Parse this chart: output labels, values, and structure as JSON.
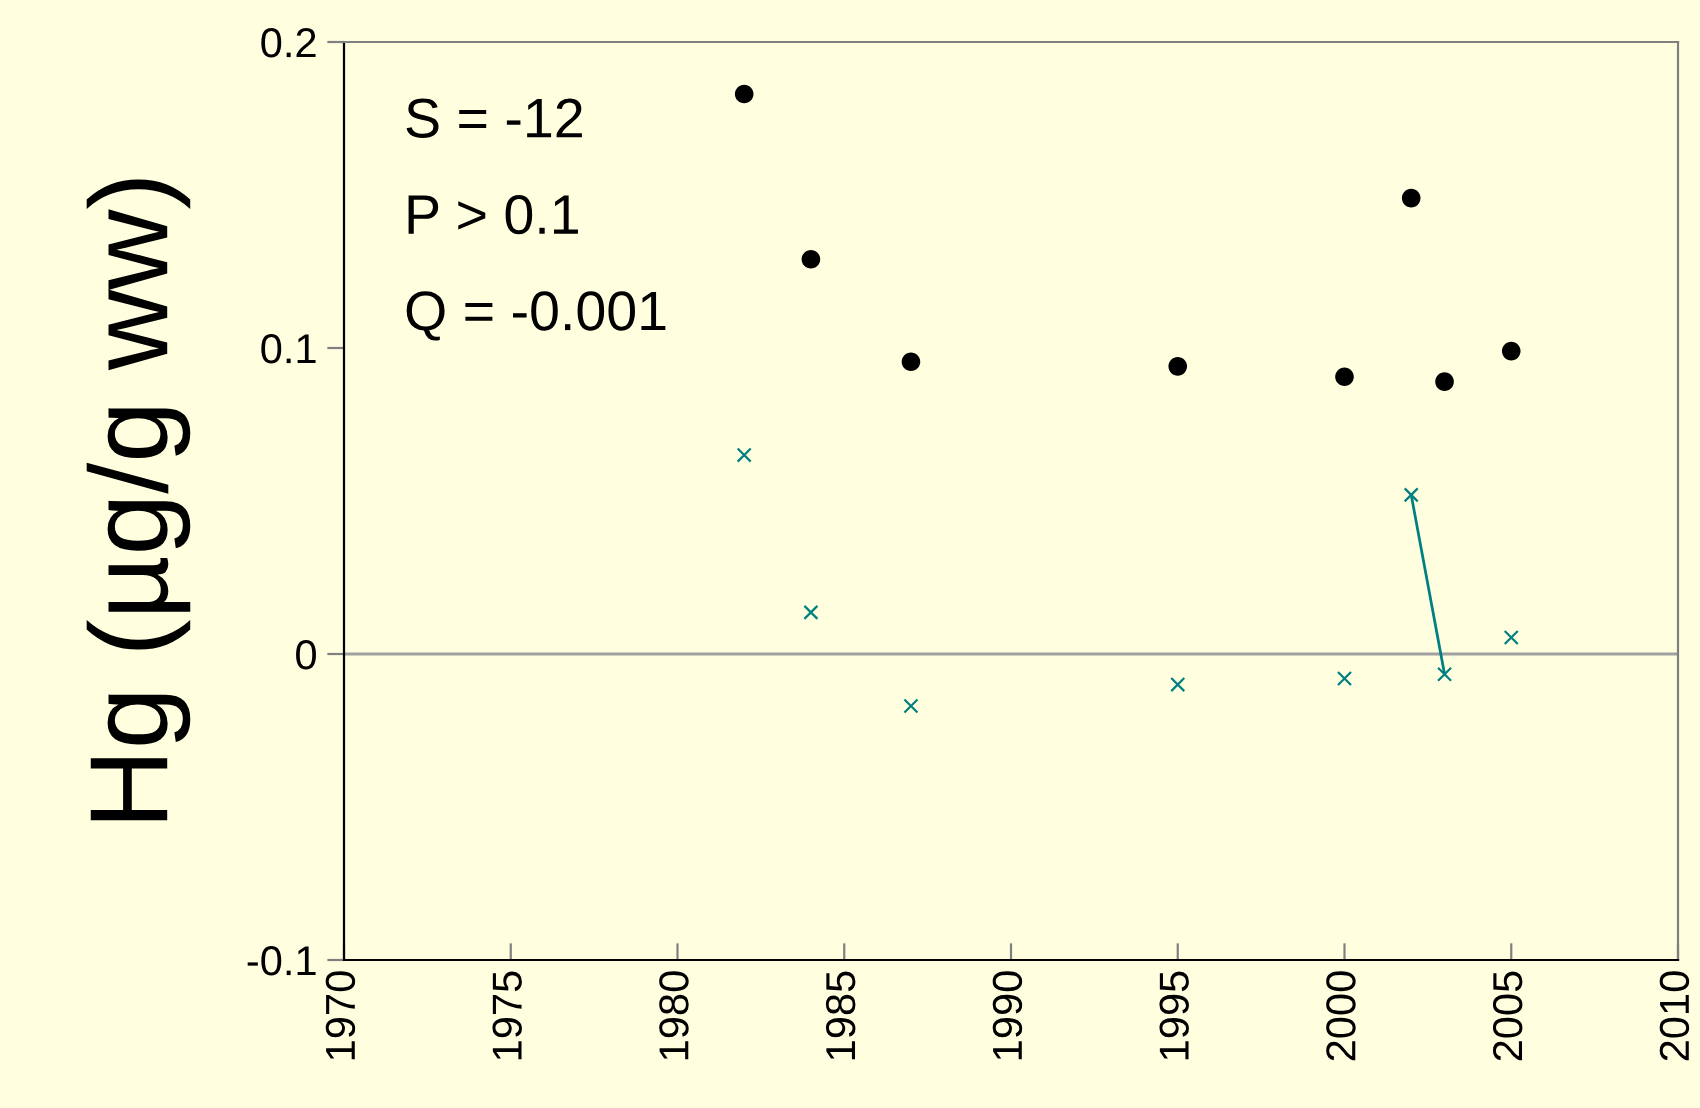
{
  "chart_data": {
    "type": "scatter",
    "ylabel": "Hg (µg/g ww)",
    "xlim": [
      1970,
      2010
    ],
    "xticks": [
      1970,
      1975,
      1980,
      1985,
      1990,
      1995,
      2000,
      2005,
      2010
    ],
    "ylim": [
      -0.1,
      0.2
    ],
    "yticks": [
      -0.1,
      0,
      0.1,
      0.2
    ],
    "grid": false,
    "legend": false,
    "annotations": [
      "S = -12",
      "P > 0.1",
      "Q = -0.001"
    ],
    "ref_lines": [
      {
        "axis": "y",
        "value": 0,
        "color": "#a0a0a0"
      }
    ],
    "series": [
      {
        "marker": "circle",
        "color": "#000000",
        "x": [
          1982,
          1984,
          1987,
          1995,
          2000,
          2002,
          2003,
          2005
        ],
        "values": [
          0.183,
          0.129,
          0.0955,
          0.094,
          0.0906,
          0.149,
          0.089,
          0.099
        ]
      },
      {
        "marker": "cross",
        "color": "#008080",
        "x": [
          1982,
          1984,
          1987,
          1995,
          2000,
          2002,
          2003,
          2005
        ],
        "values": [
          0.065,
          0.0136,
          -0.017,
          -0.01,
          -0.008,
          0.052,
          -0.0066,
          0.0054
        ]
      },
      {
        "type": "line",
        "marker": "none",
        "color": "#008080",
        "x": [
          2002,
          2003
        ],
        "values": [
          0.052,
          -0.0066
        ]
      }
    ]
  }
}
